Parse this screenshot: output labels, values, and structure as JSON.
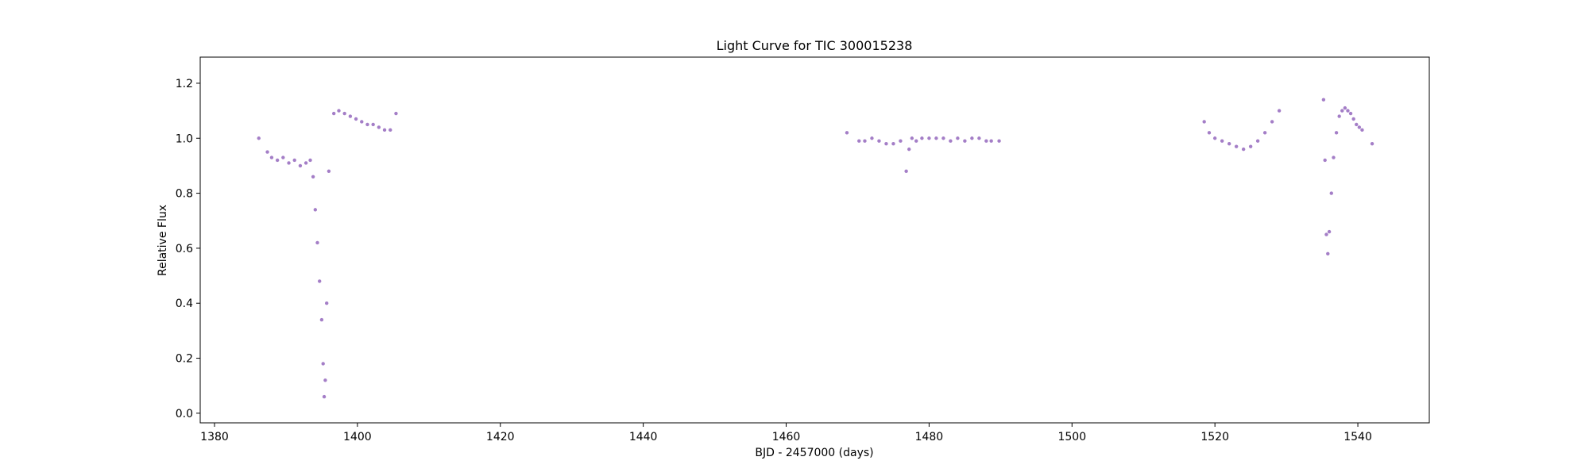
{
  "chart_data": {
    "type": "scatter",
    "title": "Light Curve for TIC 300015238",
    "xlabel": "BJD - 2457000 (days)",
    "ylabel": "Relative Flux",
    "xlim": [
      1378,
      1550
    ],
    "ylim": [
      -0.035,
      1.295
    ],
    "x_ticks": [
      1380,
      1400,
      1420,
      1440,
      1460,
      1480,
      1500,
      1520,
      1540
    ],
    "y_ticks": [
      0.0,
      0.2,
      0.4,
      0.6,
      0.8,
      1.0,
      1.2
    ],
    "x_tick_labels": [
      "1380",
      "1400",
      "1420",
      "1440",
      "1460",
      "1480",
      "1500",
      "1520",
      "1540"
    ],
    "y_tick_labels": [
      "0.0",
      "0.2",
      "0.4",
      "0.6",
      "0.8",
      "1.0",
      "1.2"
    ],
    "grid": false,
    "point_color": "#9467bd",
    "series": [
      {
        "x": [
          1386.2,
          1387.4,
          1388.0,
          1388.8,
          1389.6,
          1390.4,
          1391.2,
          1392.0,
          1392.8,
          1393.4,
          1393.8,
          1394.1,
          1394.4,
          1394.7,
          1395.0,
          1395.2,
          1395.35,
          1395.5,
          1395.7,
          1396.0,
          1396.7,
          1397.4,
          1398.2,
          1399.0,
          1399.8,
          1400.6,
          1401.4,
          1402.2,
          1403.0,
          1403.8,
          1404.6,
          1405.4,
          1468.5,
          1470.2,
          1471.0,
          1472.0,
          1473.0,
          1474.0,
          1475.0,
          1476.0,
          1476.8,
          1477.2,
          1477.6,
          1478.2,
          1479.0,
          1480.0,
          1481.0,
          1482.0,
          1483.0,
          1484.0,
          1485.0,
          1486.0,
          1487.0,
          1488.0,
          1488.7,
          1489.8,
          1518.5,
          1519.2,
          1520.0,
          1521.0,
          1522.0,
          1523.0,
          1524.0,
          1525.0,
          1526.0,
          1527.0,
          1528.0,
          1529.0,
          1535.2,
          1535.4,
          1535.6,
          1535.8,
          1536.0,
          1536.3,
          1536.6,
          1537.0,
          1537.4,
          1537.8,
          1538.2,
          1538.6,
          1539.0,
          1539.4,
          1539.8,
          1540.2,
          1540.6,
          1542.0
        ],
        "y": [
          1.0,
          0.95,
          0.93,
          0.92,
          0.93,
          0.91,
          0.92,
          0.9,
          0.91,
          0.92,
          0.86,
          0.74,
          0.62,
          0.48,
          0.34,
          0.18,
          0.06,
          0.12,
          0.4,
          0.88,
          1.09,
          1.1,
          1.09,
          1.08,
          1.07,
          1.06,
          1.05,
          1.05,
          1.04,
          1.03,
          1.03,
          1.09,
          1.02,
          0.99,
          0.99,
          1.0,
          0.99,
          0.98,
          0.98,
          0.99,
          0.88,
          0.96,
          1.0,
          0.99,
          1.0,
          1.0,
          1.0,
          1.0,
          0.99,
          1.0,
          0.99,
          1.0,
          1.0,
          0.99,
          0.99,
          0.99,
          1.06,
          1.02,
          1.0,
          0.99,
          0.98,
          0.97,
          0.96,
          0.97,
          0.99,
          1.02,
          1.06,
          1.1,
          1.14,
          0.92,
          0.65,
          0.58,
          0.66,
          0.8,
          0.93,
          1.02,
          1.08,
          1.1,
          1.11,
          1.1,
          1.09,
          1.07,
          1.05,
          1.04,
          1.03,
          0.98
        ]
      }
    ]
  }
}
